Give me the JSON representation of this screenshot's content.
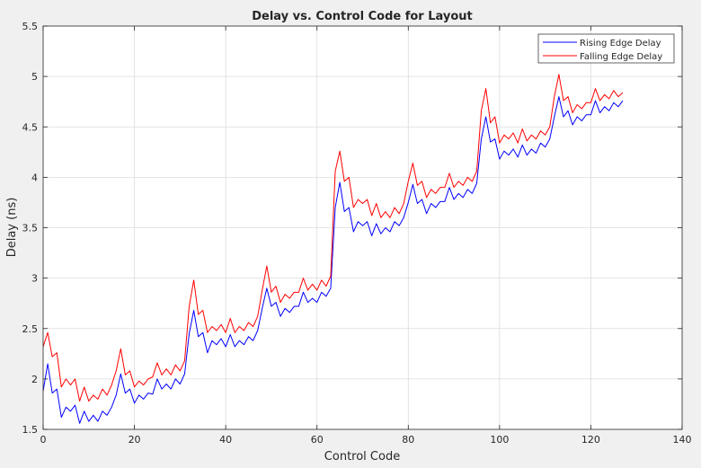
{
  "chart_data": {
    "type": "line",
    "title": "Delay vs. Control Code for Layout",
    "xlabel": "Control Code",
    "ylabel": "Delay (ns)",
    "xlim": [
      0,
      140
    ],
    "ylim": [
      1.5,
      5.5
    ],
    "xticks": [
      0,
      20,
      40,
      60,
      80,
      100,
      120,
      140
    ],
    "xtick_labels": [
      "0",
      "20",
      "40",
      "60",
      "80",
      "100",
      "120",
      "140"
    ],
    "yticks": [
      1.5,
      2,
      2.5,
      3,
      3.5,
      4,
      4.5,
      5,
      5.5
    ],
    "ytick_labels": [
      "1.5",
      "2",
      "2.5",
      "3",
      "3.5",
      "4",
      "4.5",
      "5",
      "5.5"
    ],
    "grid": true,
    "legend": "top-right",
    "x": [
      0,
      1,
      2,
      3,
      4,
      5,
      6,
      7,
      8,
      9,
      10,
      11,
      12,
      13,
      14,
      15,
      16,
      17,
      18,
      19,
      20,
      21,
      22,
      23,
      24,
      25,
      26,
      27,
      28,
      29,
      30,
      31,
      32,
      33,
      34,
      35,
      36,
      37,
      38,
      39,
      40,
      41,
      42,
      43,
      44,
      45,
      46,
      47,
      48,
      49,
      50,
      51,
      52,
      53,
      54,
      55,
      56,
      57,
      58,
      59,
      60,
      61,
      62,
      63,
      64,
      65,
      66,
      67,
      68,
      69,
      70,
      71,
      72,
      73,
      74,
      75,
      76,
      77,
      78,
      79,
      80,
      81,
      82,
      83,
      84,
      85,
      86,
      87,
      88,
      89,
      90,
      91,
      92,
      93,
      94,
      95,
      96,
      97,
      98,
      99,
      100,
      101,
      102,
      103,
      104,
      105,
      106,
      107,
      108,
      109,
      110,
      111,
      112,
      113,
      114,
      115,
      116,
      117,
      118,
      119,
      120,
      121,
      122,
      123,
      124,
      125,
      126,
      127
    ],
    "series": [
      {
        "name": "Rising Edge Delay",
        "color": "#0000ff",
        "values": [
          1.88,
          2.15,
          1.86,
          1.9,
          1.62,
          1.72,
          1.68,
          1.74,
          1.56,
          1.68,
          1.58,
          1.64,
          1.58,
          1.68,
          1.64,
          1.72,
          1.84,
          2.05,
          1.86,
          1.9,
          1.76,
          1.84,
          1.8,
          1.86,
          1.85,
          2.0,
          1.9,
          1.95,
          1.9,
          2.0,
          1.95,
          2.05,
          2.45,
          2.68,
          2.42,
          2.46,
          2.26,
          2.38,
          2.34,
          2.4,
          2.32,
          2.44,
          2.32,
          2.38,
          2.34,
          2.42,
          2.38,
          2.48,
          2.7,
          2.9,
          2.72,
          2.76,
          2.62,
          2.7,
          2.66,
          2.72,
          2.72,
          2.86,
          2.76,
          2.8,
          2.76,
          2.86,
          2.82,
          2.9,
          3.7,
          3.95,
          3.66,
          3.7,
          3.46,
          3.56,
          3.52,
          3.56,
          3.42,
          3.54,
          3.44,
          3.5,
          3.46,
          3.56,
          3.52,
          3.6,
          3.75,
          3.93,
          3.74,
          3.78,
          3.64,
          3.74,
          3.7,
          3.76,
          3.76,
          3.9,
          3.78,
          3.84,
          3.8,
          3.88,
          3.84,
          3.94,
          4.38,
          4.6,
          4.35,
          4.38,
          4.18,
          4.26,
          4.22,
          4.28,
          4.2,
          4.32,
          4.22,
          4.28,
          4.24,
          4.34,
          4.3,
          4.38,
          4.6,
          4.8,
          4.6,
          4.66,
          4.52,
          4.6,
          4.56,
          4.62,
          4.62,
          4.76,
          4.64,
          4.7,
          4.66,
          4.74,
          4.7,
          4.76
        ]
      },
      {
        "name": "Falling Edge Delay",
        "color": "#ff0000",
        "values": [
          2.32,
          2.46,
          2.22,
          2.26,
          1.92,
          2.0,
          1.94,
          2.0,
          1.78,
          1.92,
          1.78,
          1.84,
          1.8,
          1.9,
          1.84,
          1.94,
          2.08,
          2.3,
          2.04,
          2.08,
          1.92,
          1.98,
          1.94,
          2.0,
          2.02,
          2.16,
          2.04,
          2.1,
          2.04,
          2.14,
          2.08,
          2.18,
          2.72,
          2.98,
          2.64,
          2.68,
          2.46,
          2.52,
          2.48,
          2.54,
          2.46,
          2.6,
          2.46,
          2.52,
          2.48,
          2.56,
          2.52,
          2.62,
          2.88,
          3.12,
          2.86,
          2.92,
          2.76,
          2.84,
          2.8,
          2.86,
          2.86,
          3.0,
          2.88,
          2.94,
          2.88,
          2.98,
          2.92,
          3.02,
          4.06,
          4.26,
          3.96,
          4.0,
          3.7,
          3.78,
          3.74,
          3.78,
          3.62,
          3.74,
          3.6,
          3.66,
          3.6,
          3.7,
          3.64,
          3.74,
          3.96,
          4.14,
          3.92,
          3.96,
          3.8,
          3.88,
          3.84,
          3.9,
          3.9,
          4.04,
          3.9,
          3.96,
          3.92,
          4.0,
          3.96,
          4.06,
          4.66,
          4.88,
          4.54,
          4.6,
          4.34,
          4.42,
          4.38,
          4.44,
          4.34,
          4.48,
          4.36,
          4.42,
          4.38,
          4.46,
          4.42,
          4.5,
          4.8,
          5.02,
          4.76,
          4.8,
          4.64,
          4.72,
          4.68,
          4.74,
          4.74,
          4.88,
          4.76,
          4.82,
          4.78,
          4.86,
          4.8,
          4.84
        ]
      }
    ]
  }
}
